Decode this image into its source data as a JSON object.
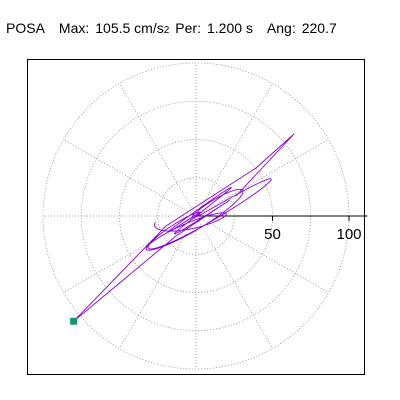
{
  "header": {
    "label": "POSA",
    "max_label": "Max:",
    "max_value": "105.5 cm/s",
    "max_exp": "2",
    "period_label": "Per:",
    "period_value": "1.200 s",
    "angle_label": "Ang:",
    "angle_value": "220.7"
  },
  "chart_data": {
    "type": "polar-trace",
    "radial_ticks": [
      50,
      100
    ],
    "radial_tick_labels": [
      "50",
      "100"
    ],
    "rings": [
      25,
      50,
      75,
      100
    ],
    "spokes_deg": [
      0,
      30,
      60,
      90,
      120,
      150,
      180,
      210,
      240,
      270,
      300,
      330
    ],
    "grid": true,
    "max_magnitude": 105.5,
    "max_angle_deg": 220.7,
    "trace_color": "#8a00d4",
    "marker_color": "#119977",
    "axis_color": "#000000",
    "grid_color": "#888888"
  }
}
